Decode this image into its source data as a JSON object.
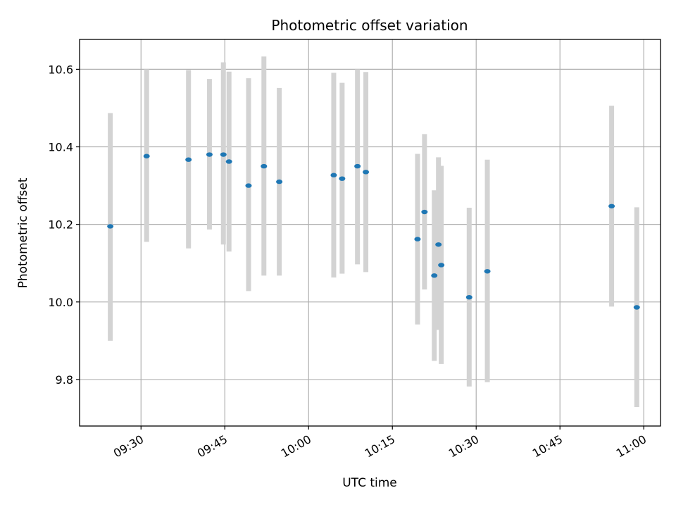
{
  "chart_data": {
    "type": "scatter",
    "title": "Photometric offset variation",
    "xlabel": "UTC time",
    "ylabel": "Photometric offset",
    "xlim": [
      "09:19",
      "11:03"
    ],
    "ylim": [
      9.68,
      10.677
    ],
    "x_ticks": [
      "09:30",
      "09:45",
      "10:00",
      "10:15",
      "10:30",
      "10:45",
      "11:00"
    ],
    "y_ticks": [
      "9.8",
      "10.0",
      "10.2",
      "10.4",
      "10.6"
    ],
    "grid": true,
    "marker_color": "#1f77b4",
    "errorbar_color": "#d3d3d3",
    "points": [
      {
        "x": "09:24:30",
        "y": 10.195,
        "y_low": 9.9,
        "y_high": 10.487
      },
      {
        "x": "09:31:00",
        "y": 10.376,
        "y_low": 10.155,
        "y_high": 10.6
      },
      {
        "x": "09:38:30",
        "y": 10.367,
        "y_low": 10.138,
        "y_high": 10.598
      },
      {
        "x": "09:42:15",
        "y": 10.38,
        "y_low": 10.187,
        "y_high": 10.575
      },
      {
        "x": "09:44:45",
        "y": 10.38,
        "y_low": 10.148,
        "y_high": 10.618
      },
      {
        "x": "09:45:45",
        "y": 10.362,
        "y_low": 10.13,
        "y_high": 10.594
      },
      {
        "x": "09:49:15",
        "y": 10.3,
        "y_low": 10.028,
        "y_high": 10.577
      },
      {
        "x": "09:52:00",
        "y": 10.35,
        "y_low": 10.068,
        "y_high": 10.633
      },
      {
        "x": "09:54:45",
        "y": 10.31,
        "y_low": 10.068,
        "y_high": 10.552
      },
      {
        "x": "10:04:30",
        "y": 10.327,
        "y_low": 10.063,
        "y_high": 10.591
      },
      {
        "x": "10:06:00",
        "y": 10.318,
        "y_low": 10.073,
        "y_high": 10.565
      },
      {
        "x": "10:08:45",
        "y": 10.35,
        "y_low": 10.097,
        "y_high": 10.6
      },
      {
        "x": "10:10:15",
        "y": 10.335,
        "y_low": 10.077,
        "y_high": 10.593
      },
      {
        "x": "10:19:30",
        "y": 10.162,
        "y_low": 9.942,
        "y_high": 10.382
      },
      {
        "x": "10:20:45",
        "y": 10.232,
        "y_low": 10.032,
        "y_high": 10.433
      },
      {
        "x": "10:22:30",
        "y": 10.068,
        "y_low": 9.848,
        "y_high": 10.288
      },
      {
        "x": "10:23:15",
        "y": 10.148,
        "y_low": 9.928,
        "y_high": 10.373
      },
      {
        "x": "10:23:45",
        "y": 10.095,
        "y_low": 9.84,
        "y_high": 10.351
      },
      {
        "x": "10:28:45",
        "y": 10.012,
        "y_low": 9.782,
        "y_high": 10.243
      },
      {
        "x": "10:32:00",
        "y": 10.079,
        "y_low": 9.793,
        "y_high": 10.367
      },
      {
        "x": "10:54:15",
        "y": 10.247,
        "y_low": 9.988,
        "y_high": 10.506
      },
      {
        "x": "10:58:45",
        "y": 9.986,
        "y_low": 9.729,
        "y_high": 10.244
      }
    ]
  }
}
